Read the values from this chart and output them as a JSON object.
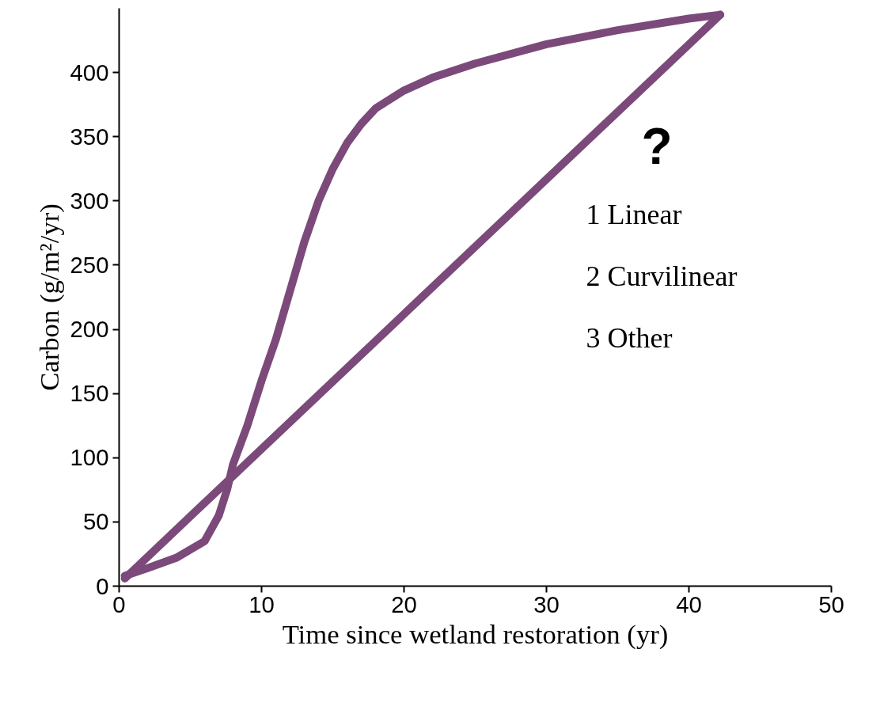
{
  "chart_data": {
    "type": "line",
    "xlabel": "Time since wetland restoration (yr)",
    "ylabel": "Carbon (g/m²/yr)",
    "xlim": [
      0,
      50
    ],
    "xticks": [
      0,
      10,
      20,
      30,
      40,
      50
    ],
    "ylim": [
      0,
      450
    ],
    "yticks": [
      0,
      50,
      100,
      150,
      200,
      250,
      300,
      350,
      400
    ],
    "grid": false,
    "marker": "none",
    "line_style": "solid",
    "annotations": [
      "?",
      "1 Linear",
      "2 Curvilinear",
      "3 Other"
    ],
    "series": [
      {
        "color": "#7b4a7a",
        "x": [
          0.4,
          42.2
        ],
        "values": [
          6,
          445
        ]
      },
      {
        "color": "#7b4a7a",
        "x": [
          0.4,
          2,
          4,
          6,
          7,
          7.6,
          8,
          9,
          10,
          11,
          12,
          13,
          14,
          15,
          16,
          17,
          18,
          20,
          22,
          25,
          30,
          35,
          40,
          42.2
        ],
        "values": [
          8,
          14,
          22,
          35,
          55,
          76,
          95,
          125,
          160,
          192,
          230,
          268,
          300,
          325,
          345,
          360,
          372,
          386,
          396,
          407,
          422,
          433,
          442,
          445
        ]
      }
    ]
  }
}
